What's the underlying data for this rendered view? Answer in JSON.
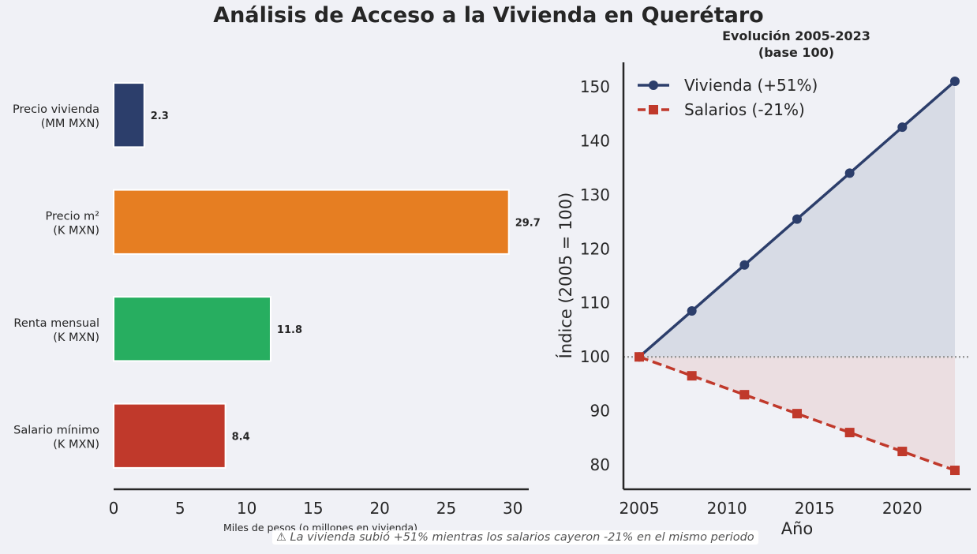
{
  "title": "Análisis de Acceso a la Vivienda en Querétaro",
  "footnote": "⚠ La vivienda subió +51% mientras los salarios cayeron -21% en el mismo periodo",
  "colors": {
    "background": "#f0f1f6",
    "vivienda": "#2c3e6b",
    "salarios": "#c0392b",
    "bar_precio_vivienda": "#2c3e6b",
    "bar_precio_m2": "#e67e22",
    "bar_renta": "#27ae60",
    "bar_salario": "#c0392b",
    "reference_line": "#999999"
  },
  "chart_data": [
    {
      "type": "bar",
      "orientation": "horizontal",
      "categories": [
        [
          "Precio vivienda",
          "(MM MXN)"
        ],
        [
          "Precio m²",
          "(K MXN)"
        ],
        [
          "Renta mensual",
          "(K MXN)"
        ],
        [
          "Salario mínimo",
          "(K MXN)"
        ]
      ],
      "values": [
        2.3,
        29.7,
        11.8,
        8.4
      ],
      "value_labels": [
        "2.3",
        "29.7",
        "11.8",
        "8.4"
      ],
      "xlabel": "Miles de pesos (o millones en vivienda)",
      "xlim": [
        0,
        31.2
      ],
      "xticks": [
        0,
        5,
        10,
        15,
        20,
        25,
        30
      ],
      "grid": false
    },
    {
      "type": "line",
      "title": [
        "Evolución 2005-2023",
        "(base 100)"
      ],
      "xlabel": "Año",
      "ylabel": "Índice (2005 = 100)",
      "xlim": [
        2004.1,
        2023.9
      ],
      "ylim": [
        75.5,
        154.5
      ],
      "xticks": [
        2005,
        2010,
        2015,
        2020
      ],
      "yticks": [
        80,
        90,
        100,
        110,
        120,
        130,
        140,
        150
      ],
      "reference_line": 100,
      "legend_position": "top-left",
      "x": [
        2005,
        2008,
        2011,
        2014,
        2017,
        2020,
        2023
      ],
      "series": [
        {
          "name": "Vivienda (+51%)",
          "values": [
            100,
            108.5,
            117,
            125.5,
            134,
            142.5,
            151
          ],
          "marker": "circle",
          "style": "solid"
        },
        {
          "name": "Salarios (-21%)",
          "values": [
            100,
            96.5,
            93,
            89.5,
            86,
            82.5,
            79
          ],
          "marker": "square",
          "style": "dashed"
        }
      ]
    }
  ]
}
